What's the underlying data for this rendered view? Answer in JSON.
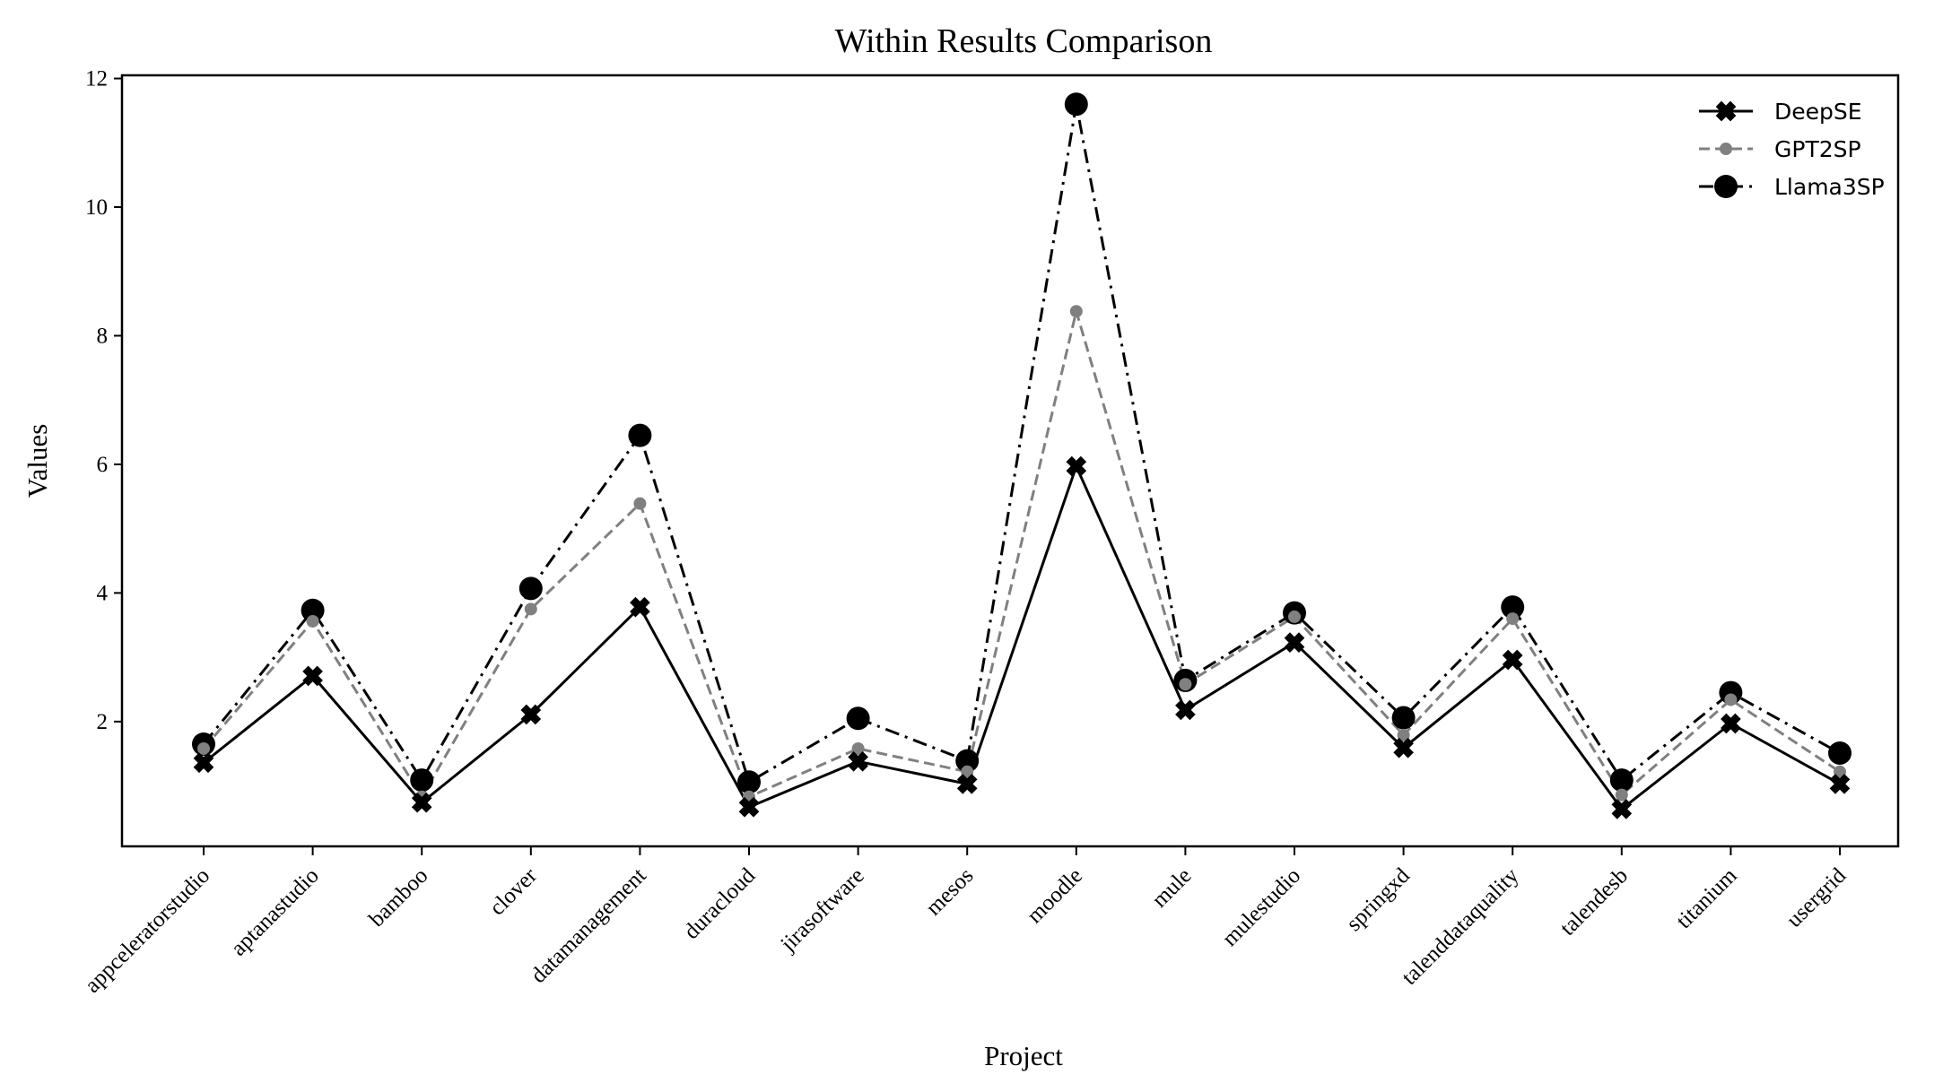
{
  "chart_data": {
    "type": "line",
    "title": "Within Results Comparison",
    "xlabel": "Project",
    "ylabel": "Values",
    "ylim": [
      0.06,
      12.2
    ],
    "yticks": [
      2,
      4,
      6,
      8,
      10,
      12
    ],
    "grid": false,
    "legend_position": "top-right",
    "categories": [
      "appceleratorstudio",
      "aptanastudio",
      "bamboo",
      "clover",
      "datamanagement",
      "duracloud",
      "jirasoftware",
      "mesos",
      "moodle",
      "mule",
      "mulestudio",
      "springxd",
      "talenddataquality",
      "talendesb",
      "titanium",
      "usergrid"
    ],
    "series": [
      {
        "name": "DeepSE",
        "color": "#000000",
        "linestyle": "solid",
        "marker": "x-filled",
        "values": [
          1.36,
          2.71,
          0.74,
          2.11,
          3.78,
          0.67,
          1.38,
          1.03,
          5.97,
          2.18,
          3.23,
          1.59,
          2.96,
          0.64,
          1.97,
          1.03
        ]
      },
      {
        "name": "GPT2SP",
        "color": "#808080",
        "linestyle": "dashed",
        "marker": "small-circle",
        "values": [
          1.58,
          3.56,
          0.83,
          3.75,
          5.39,
          0.83,
          1.58,
          1.22,
          8.38,
          2.58,
          3.63,
          1.79,
          3.6,
          0.86,
          2.34,
          1.22
        ]
      },
      {
        "name": "Llama3SP",
        "color": "#000000",
        "linestyle": "dashdot",
        "marker": "large-circle",
        "values": [
          1.65,
          3.73,
          1.09,
          4.07,
          6.45,
          1.06,
          2.05,
          1.39,
          11.6,
          2.64,
          3.69,
          2.06,
          3.78,
          1.09,
          2.45,
          1.51
        ]
      }
    ]
  }
}
